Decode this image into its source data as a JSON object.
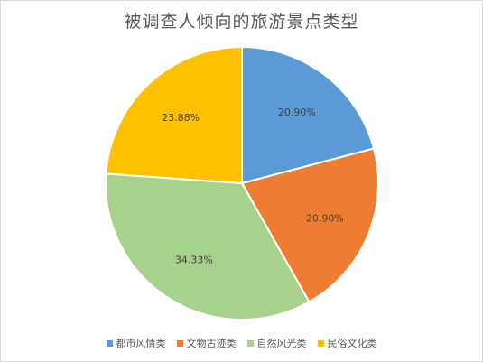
{
  "chart_data": {
    "type": "pie",
    "title": "被调查人倾向的旅游景点类型",
    "categories": [
      "都市风情类",
      "文物古迹类",
      "自然风光类",
      "民俗文化类"
    ],
    "values": [
      20.9,
      20.9,
      34.33,
      23.88
    ],
    "labels": [
      "20.90%",
      "20.90%",
      "34.33%",
      "23.88%"
    ],
    "colors": [
      "#5b9bd5",
      "#ed7d31",
      "#a9d18e",
      "#ffc000"
    ],
    "start_angle_deg": 0,
    "direction": "clockwise",
    "legend_position": "bottom"
  }
}
